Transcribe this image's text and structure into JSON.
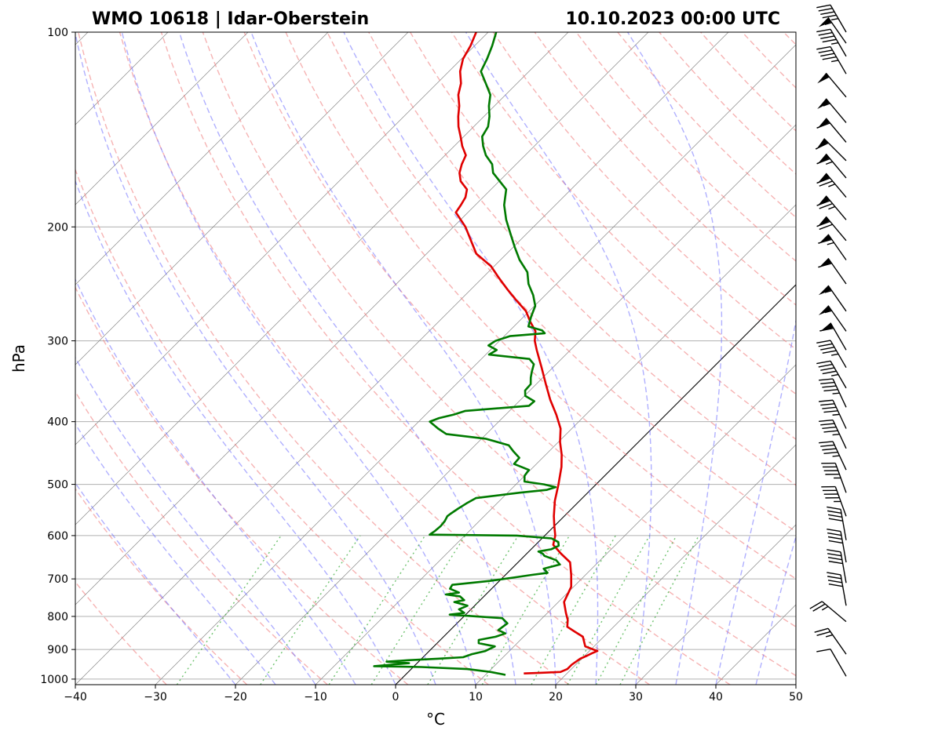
{
  "chart_data": {
    "type": "line",
    "subtype": "skew-T log-P sounding diagram",
    "title_left": "WMO 10618 | Idar-Oberstein",
    "title_right": "10.10.2023 00:00 UTC",
    "xlabel": "°C",
    "ylabel": "hPa",
    "xlim": [
      -40,
      50
    ],
    "ylim": [
      1020,
      100
    ],
    "x_ticks": [
      "−40",
      "−30",
      "−20",
      "−10",
      "0",
      "10",
      "20",
      "30",
      "40",
      "50"
    ],
    "y_ticks": [
      "100",
      "200",
      "300",
      "400",
      "500",
      "600",
      "700",
      "800",
      "900",
      "1000"
    ],
    "grid": true,
    "background_lines": {
      "isotherms": "thin gray, skewed 45°",
      "dry_adiabats": "dashed red",
      "moist_adiabats": "dashed blue",
      "mixing_ratio_lines": "dotted green (below 600 hPa)",
      "zero_isotherm": "solid black"
    },
    "series": [
      {
        "name": "Temperature",
        "color": "#e00000",
        "points": [
          [
            980,
            14.6
          ],
          [
            978,
            16.5
          ],
          [
            975,
            19.0
          ],
          [
            965,
            19.5
          ],
          [
            950,
            19.5
          ],
          [
            930,
            19.8
          ],
          [
            920,
            20.3
          ],
          [
            912,
            20.6
          ],
          [
            905,
            21.0
          ],
          [
            890,
            18.9
          ],
          [
            860,
            17.4
          ],
          [
            845,
            15.8
          ],
          [
            830,
            14.2
          ],
          [
            810,
            13.4
          ],
          [
            790,
            12.3
          ],
          [
            760,
            10.7
          ],
          [
            720,
            9.7
          ],
          [
            690,
            8.2
          ],
          [
            660,
            6.5
          ],
          [
            640,
            4.3
          ],
          [
            620,
            2.2
          ],
          [
            600,
            1.3
          ],
          [
            580,
            0.0
          ],
          [
            560,
            -1.3
          ],
          [
            530,
            -3.1
          ],
          [
            500,
            -4.7
          ],
          [
            470,
            -6.5
          ],
          [
            450,
            -8.0
          ],
          [
            430,
            -9.8
          ],
          [
            410,
            -11.4
          ],
          [
            390,
            -13.7
          ],
          [
            370,
            -16.3
          ],
          [
            350,
            -18.8
          ],
          [
            330,
            -21.4
          ],
          [
            310,
            -24.2
          ],
          [
            300,
            -25.6
          ],
          [
            290,
            -26.7
          ],
          [
            280,
            -28.6
          ],
          [
            270,
            -30.4
          ],
          [
            260,
            -32.9
          ],
          [
            250,
            -35.4
          ],
          [
            240,
            -37.9
          ],
          [
            230,
            -40.4
          ],
          [
            220,
            -43.8
          ],
          [
            210,
            -46.1
          ],
          [
            200,
            -48.5
          ],
          [
            190,
            -51.5
          ],
          [
            185,
            -51.8
          ],
          [
            180,
            -52.2
          ],
          [
            175,
            -53.0
          ],
          [
            170,
            -54.8
          ],
          [
            165,
            -56.0
          ],
          [
            160,
            -56.8
          ],
          [
            155,
            -57.4
          ],
          [
            150,
            -59.0
          ],
          [
            145,
            -60.4
          ],
          [
            140,
            -61.9
          ],
          [
            135,
            -63.2
          ],
          [
            130,
            -64.4
          ],
          [
            125,
            -65.9
          ],
          [
            120,
            -67.0
          ],
          [
            115,
            -68.6
          ],
          [
            110,
            -69.8
          ],
          [
            105,
            -70.5
          ],
          [
            100,
            -71.5
          ]
        ]
      },
      {
        "name": "Dewpoint",
        "color": "#007a00",
        "points": [
          [
            985,
            12.5
          ],
          [
            975,
            10.3
          ],
          [
            965,
            7.0
          ],
          [
            958,
            1.0
          ],
          [
            955,
            -5.0
          ],
          [
            950,
            -3.0
          ],
          [
            945,
            -1.0
          ],
          [
            940,
            -4.0
          ],
          [
            935,
            -1.5
          ],
          [
            930,
            2.0
          ],
          [
            925,
            5.0
          ],
          [
            915,
            5.7
          ],
          [
            905,
            7.0
          ],
          [
            890,
            7.6
          ],
          [
            880,
            5.2
          ],
          [
            870,
            4.8
          ],
          [
            860,
            6.5
          ],
          [
            850,
            7.3
          ],
          [
            840,
            6.0
          ],
          [
            820,
            6.3
          ],
          [
            805,
            5.0
          ],
          [
            795,
            -2.0
          ],
          [
            790,
            -0.4
          ],
          [
            780,
            -1.5
          ],
          [
            770,
            -0.9
          ],
          [
            760,
            -3.0
          ],
          [
            755,
            -2.0
          ],
          [
            745,
            -3.0
          ],
          [
            740,
            -5.0
          ],
          [
            735,
            -3.6
          ],
          [
            725,
            -5.2
          ],
          [
            715,
            -5.4
          ],
          [
            705,
            -1.2
          ],
          [
            695,
            1.8
          ],
          [
            690,
            3.3
          ],
          [
            685,
            5.0
          ],
          [
            675,
            4.0
          ],
          [
            665,
            5.5
          ],
          [
            655,
            4.5
          ],
          [
            645,
            2.5
          ],
          [
            640,
            2.0
          ],
          [
            635,
            1.2
          ],
          [
            630,
            2.5
          ],
          [
            622,
            3.0
          ],
          [
            614,
            2.5
          ],
          [
            606,
            1.2
          ],
          [
            600,
            -3.5
          ],
          [
            598,
            -14.5
          ],
          [
            590,
            -14.3
          ],
          [
            580,
            -14.2
          ],
          [
            570,
            -14.3
          ],
          [
            560,
            -14.6
          ],
          [
            555,
            -14.5
          ],
          [
            545,
            -14.2
          ],
          [
            535,
            -13.8
          ],
          [
            525,
            -13.3
          ],
          [
            515,
            -8.5
          ],
          [
            510,
            -5.5
          ],
          [
            505,
            -4.7
          ],
          [
            500,
            -6.5
          ],
          [
            495,
            -9.3
          ],
          [
            485,
            -10.0
          ],
          [
            475,
            -10.2
          ],
          [
            465,
            -12.8
          ],
          [
            455,
            -12.9
          ],
          [
            445,
            -14.4
          ],
          [
            435,
            -15.8
          ],
          [
            425,
            -19.5
          ],
          [
            418,
            -25.0
          ],
          [
            410,
            -26.7
          ],
          [
            400,
            -28.6
          ],
          [
            395,
            -27.9
          ],
          [
            390,
            -26.5
          ],
          [
            385,
            -25.5
          ],
          [
            378,
            -18.2
          ],
          [
            372,
            -18.1
          ],
          [
            365,
            -19.9
          ],
          [
            358,
            -20.6
          ],
          [
            350,
            -20.7
          ],
          [
            342,
            -21.5
          ],
          [
            335,
            -22.1
          ],
          [
            326,
            -22.8
          ],
          [
            320,
            -24.0
          ],
          [
            315,
            -29.6
          ],
          [
            310,
            -29.2
          ],
          [
            305,
            -30.8
          ],
          [
            300,
            -30.5
          ],
          [
            295,
            -29.3
          ],
          [
            292,
            -25.3
          ],
          [
            289,
            -26.0
          ],
          [
            285,
            -28.2
          ],
          [
            275,
            -29.1
          ],
          [
            265,
            -29.9
          ],
          [
            255,
            -31.5
          ],
          [
            245,
            -33.5
          ],
          [
            235,
            -35.1
          ],
          [
            225,
            -37.6
          ],
          [
            215,
            -39.8
          ],
          [
            205,
            -42.0
          ],
          [
            195,
            -44.3
          ],
          [
            185,
            -46.4
          ],
          [
            175,
            -48.1
          ],
          [
            165,
            -51.8
          ],
          [
            160,
            -53.0
          ],
          [
            155,
            -54.9
          ],
          [
            150,
            -56.4
          ],
          [
            145,
            -57.7
          ],
          [
            140,
            -58.2
          ],
          [
            135,
            -59.3
          ],
          [
            130,
            -60.7
          ],
          [
            125,
            -61.9
          ],
          [
            120,
            -63.9
          ],
          [
            115,
            -66.0
          ],
          [
            110,
            -66.8
          ],
          [
            105,
            -67.8
          ],
          [
            100,
            -69.0
          ]
        ]
      }
    ],
    "wind_barbs": {
      "units": "knots",
      "levels": [
        {
          "p": 990,
          "spd": 10,
          "dir": 320
        },
        {
          "p": 915,
          "spd": 25,
          "dir": 315
        },
        {
          "p": 815,
          "spd": 25,
          "dir": 300
        },
        {
          "p": 770,
          "spd": 40,
          "dir": 340
        },
        {
          "p": 710,
          "spd": 40,
          "dir": 340
        },
        {
          "p": 660,
          "spd": 40,
          "dir": 340
        },
        {
          "p": 610,
          "spd": 40,
          "dir": 340
        },
        {
          "p": 560,
          "spd": 45,
          "dir": 330
        },
        {
          "p": 515,
          "spd": 45,
          "dir": 330
        },
        {
          "p": 475,
          "spd": 45,
          "dir": 325
        },
        {
          "p": 440,
          "spd": 45,
          "dir": 325
        },
        {
          "p": 410,
          "spd": 45,
          "dir": 325
        },
        {
          "p": 380,
          "spd": 45,
          "dir": 325
        },
        {
          "p": 355,
          "spd": 45,
          "dir": 320
        },
        {
          "p": 330,
          "spd": 45,
          "dir": 320
        },
        {
          "p": 310,
          "spd": 60,
          "dir": 320
        },
        {
          "p": 290,
          "spd": 55,
          "dir": 315
        },
        {
          "p": 270,
          "spd": 55,
          "dir": 315
        },
        {
          "p": 245,
          "spd": 60,
          "dir": 315
        },
        {
          "p": 225,
          "spd": 65,
          "dir": 315
        },
        {
          "p": 210,
          "spd": 70,
          "dir": 310
        },
        {
          "p": 195,
          "spd": 75,
          "dir": 310
        },
        {
          "p": 180,
          "spd": 75,
          "dir": 310
        },
        {
          "p": 168,
          "spd": 65,
          "dir": 310
        },
        {
          "p": 158,
          "spd": 60,
          "dir": 305
        },
        {
          "p": 148,
          "spd": 60,
          "dir": 310
        },
        {
          "p": 138,
          "spd": 55,
          "dir": 310
        },
        {
          "p": 126,
          "spd": 50,
          "dir": 310
        },
        {
          "p": 116,
          "spd": 45,
          "dir": 320
        },
        {
          "p": 109,
          "spd": 45,
          "dir": 320
        },
        {
          "p": 104,
          "spd": 55,
          "dir": 315
        },
        {
          "p": 100,
          "spd": 45,
          "dir": 320
        }
      ]
    }
  }
}
